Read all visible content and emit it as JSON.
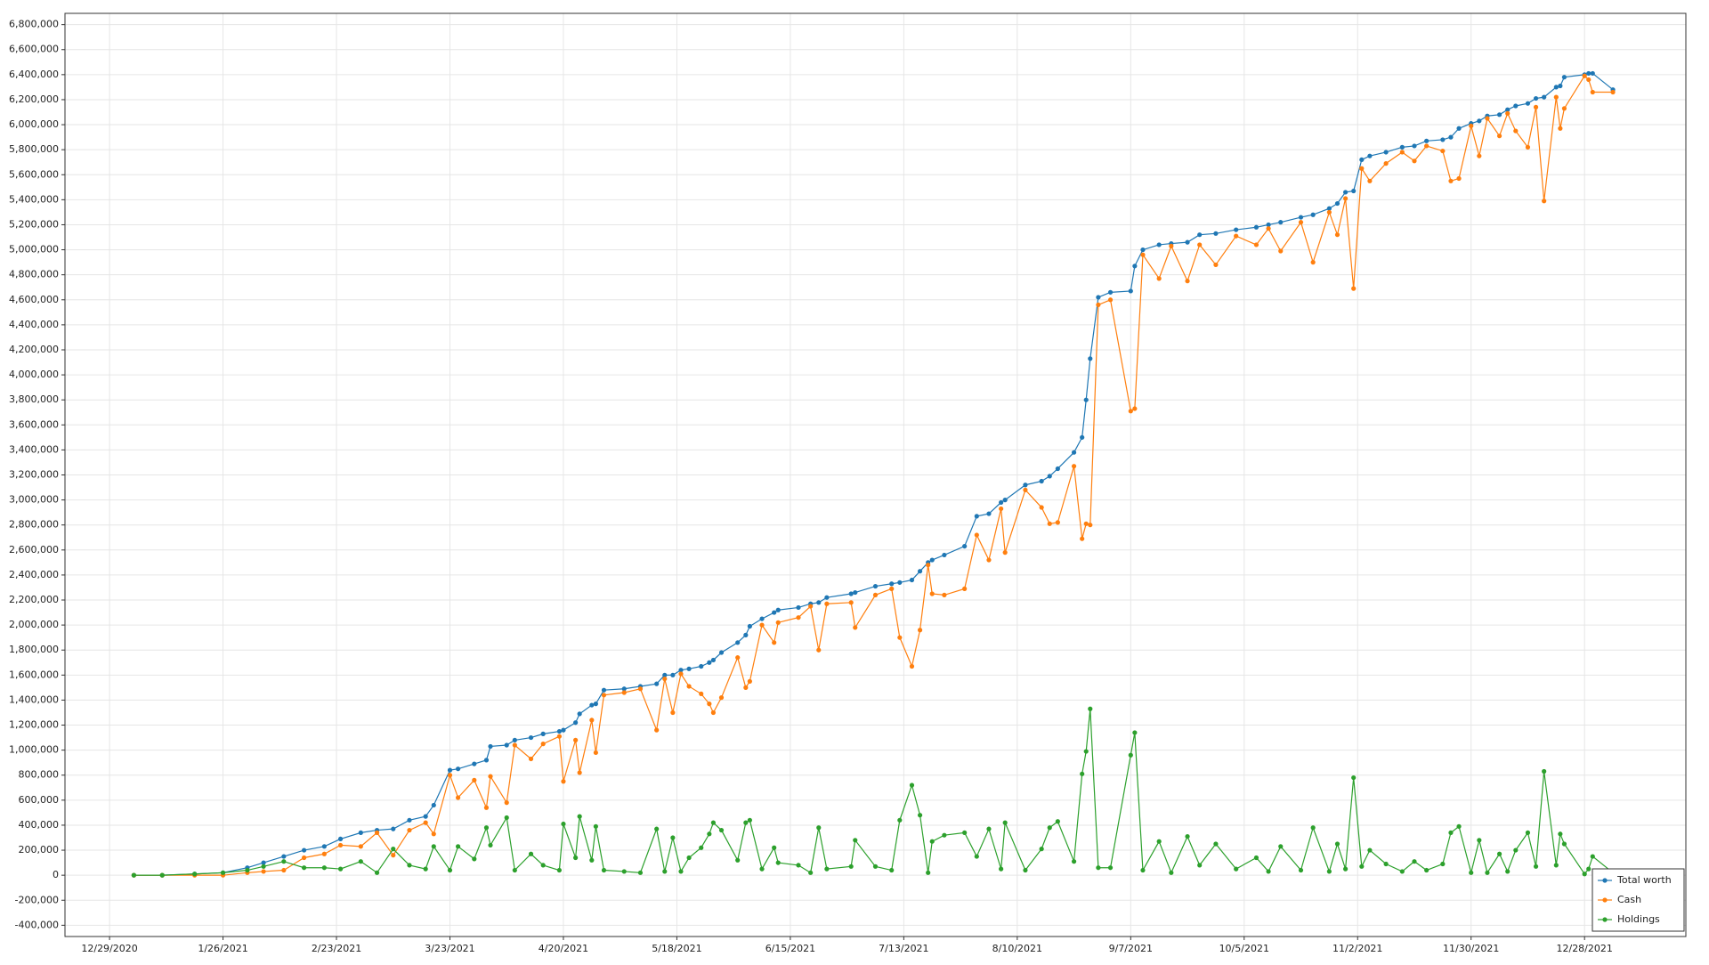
{
  "chart_data": {
    "type": "line",
    "x": [
      "1/4/2021",
      "1/11/2021",
      "1/19/2021",
      "1/26/2021",
      "2/1/2021",
      "2/5/2021",
      "2/10/2021",
      "2/15/2021",
      "2/20/2021",
      "2/24/2021",
      "3/1/2021",
      "3/5/2021",
      "3/9/2021",
      "3/13/2021",
      "3/17/2021",
      "3/19/2021",
      "3/23/2021",
      "3/25/2021",
      "3/29/2021",
      "4/1/2021",
      "4/2/2021",
      "4/6/2021",
      "4/8/2021",
      "4/12/2021",
      "4/15/2021",
      "4/19/2021",
      "4/20/2021",
      "4/23/2021",
      "4/24/2021",
      "4/27/2021",
      "4/28/2021",
      "4/30/2021",
      "5/5/2021",
      "5/9/2021",
      "5/13/2021",
      "5/15/2021",
      "5/17/2021",
      "5/19/2021",
      "5/21/2021",
      "5/24/2021",
      "5/26/2021",
      "5/27/2021",
      "5/29/2021",
      "6/2/2021",
      "6/4/2021",
      "6/5/2021",
      "6/8/2021",
      "6/11/2021",
      "6/12/2021",
      "6/17/2021",
      "6/20/2021",
      "6/22/2021",
      "6/24/2021",
      "6/30/2021",
      "7/1/2021",
      "7/6/2021",
      "7/10/2021",
      "7/12/2021",
      "7/15/2021",
      "7/17/2021",
      "7/19/2021",
      "7/20/2021",
      "7/23/2021",
      "7/28/2021",
      "7/31/2021",
      "8/3/2021",
      "8/6/2021",
      "8/7/2021",
      "8/12/2021",
      "8/16/2021",
      "8/18/2021",
      "8/20/2021",
      "8/24/2021",
      "8/26/2021",
      "8/27/2021",
      "8/28/2021",
      "8/30/2021",
      "9/2/2021",
      "9/7/2021",
      "9/8/2021",
      "9/10/2021",
      "9/14/2021",
      "9/17/2021",
      "9/21/2021",
      "9/24/2021",
      "9/28/2021",
      "10/3/2021",
      "10/8/2021",
      "10/11/2021",
      "10/14/2021",
      "10/19/2021",
      "10/22/2021",
      "10/26/2021",
      "10/28/2021",
      "10/30/2021",
      "11/1/2021",
      "11/3/2021",
      "11/5/2021",
      "11/9/2021",
      "11/13/2021",
      "11/16/2021",
      "11/19/2021",
      "11/23/2021",
      "11/25/2021",
      "11/27/2021",
      "11/30/2021",
      "12/2/2021",
      "12/4/2021",
      "12/7/2021",
      "12/9/2021",
      "12/11/2021",
      "12/14/2021",
      "12/16/2021",
      "12/18/2021",
      "12/21/2021",
      "12/22/2021",
      "12/23/2021",
      "12/28/2021",
      "12/29/2021",
      "12/30/2021",
      "1/4/2022"
    ],
    "series": [
      {
        "name": "Total worth",
        "color": "#1f77b4",
        "values": [
          0,
          0,
          10000,
          20000,
          60000,
          100000,
          150000,
          200000,
          230000,
          290000,
          340000,
          360000,
          370000,
          440000,
          470000,
          560000,
          840000,
          850000,
          890000,
          920000,
          1030000,
          1040000,
          1080000,
          1100000,
          1130000,
          1150000,
          1160000,
          1220000,
          1290000,
          1360000,
          1370000,
          1480000,
          1490000,
          1510000,
          1530000,
          1600000,
          1600000,
          1640000,
          1650000,
          1670000,
          1700000,
          1720000,
          1780000,
          1860000,
          1920000,
          1990000,
          2050000,
          2100000,
          2120000,
          2140000,
          2170000,
          2180000,
          2220000,
          2250000,
          2260000,
          2310000,
          2330000,
          2340000,
          2360000,
          2430000,
          2500000,
          2520000,
          2560000,
          2630000,
          2870000,
          2890000,
          2980000,
          3000000,
          3120000,
          3150000,
          3190000,
          3250000,
          3380000,
          3500000,
          3800000,
          4130000,
          4620000,
          4660000,
          4670000,
          4870000,
          5000000,
          5040000,
          5050000,
          5060000,
          5120000,
          5130000,
          5160000,
          5180000,
          5200000,
          5220000,
          5260000,
          5280000,
          5330000,
          5370000,
          5460000,
          5470000,
          5720000,
          5750000,
          5780000,
          5820000,
          5830000,
          5870000,
          5880000,
          5900000,
          5970000,
          6010000,
          6030000,
          6070000,
          6080000,
          6120000,
          6150000,
          6170000,
          6210000,
          6220000,
          6300000,
          6310000,
          6380000,
          6400000,
          6410000,
          6410000,
          6280000
        ]
      },
      {
        "name": "Cash",
        "color": "#ff7f0e",
        "values": [
          0,
          0,
          0,
          0,
          20000,
          30000,
          40000,
          140000,
          170000,
          240000,
          230000,
          340000,
          160000,
          360000,
          420000,
          330000,
          800000,
          620000,
          760000,
          540000,
          790000,
          580000,
          1040000,
          930000,
          1050000,
          1110000,
          750000,
          1080000,
          820000,
          1240000,
          980000,
          1440000,
          1460000,
          1490000,
          1160000,
          1570000,
          1300000,
          1610000,
          1510000,
          1450000,
          1370000,
          1300000,
          1420000,
          1740000,
          1500000,
          1550000,
          2000000,
          1860000,
          2020000,
          2060000,
          2150000,
          1800000,
          2170000,
          2180000,
          1980000,
          2240000,
          2290000,
          1900000,
          1670000,
          1960000,
          2480000,
          2250000,
          2240000,
          2290000,
          2720000,
          2520000,
          2930000,
          2580000,
          3080000,
          2940000,
          2810000,
          2820000,
          3270000,
          2690000,
          2810000,
          2800000,
          4560000,
          4600000,
          3710000,
          3730000,
          4960000,
          4770000,
          5030000,
          4750000,
          5040000,
          4880000,
          5110000,
          5040000,
          5170000,
          4990000,
          5220000,
          4900000,
          5300000,
          5120000,
          5410000,
          4690000,
          5650000,
          5550000,
          5690000,
          5780000,
          5710000,
          5830000,
          5790000,
          5550000,
          5570000,
          5990000,
          5750000,
          6050000,
          5910000,
          6090000,
          5950000,
          5820000,
          6140000,
          5390000,
          6220000,
          5970000,
          6130000,
          6390000,
          6360000,
          6260000,
          6260000
        ]
      },
      {
        "name": "Holdings",
        "color": "#2ca02c",
        "values": [
          0,
          0,
          10000,
          20000,
          40000,
          70000,
          110000,
          60000,
          60000,
          50000,
          110000,
          20000,
          210000,
          80000,
          50000,
          230000,
          40000,
          230000,
          130000,
          380000,
          240000,
          460000,
          40000,
          170000,
          80000,
          40000,
          410000,
          140000,
          470000,
          120000,
          390000,
          40000,
          30000,
          20000,
          370000,
          30000,
          300000,
          30000,
          140000,
          220000,
          330000,
          420000,
          360000,
          120000,
          420000,
          440000,
          50000,
          220000,
          100000,
          80000,
          20000,
          380000,
          50000,
          70000,
          280000,
          70000,
          40000,
          440000,
          720000,
          480000,
          20000,
          270000,
          320000,
          340000,
          150000,
          370000,
          50000,
          420000,
          40000,
          210000,
          380000,
          430000,
          110000,
          810000,
          990000,
          1330000,
          60000,
          60000,
          960000,
          1140000,
          40000,
          270000,
          20000,
          310000,
          80000,
          250000,
          50000,
          140000,
          30000,
          230000,
          40000,
          380000,
          30000,
          250000,
          50000,
          780000,
          70000,
          200000,
          90000,
          30000,
          110000,
          40000,
          90000,
          340000,
          390000,
          20000,
          280000,
          20000,
          170000,
          30000,
          200000,
          340000,
          70000,
          830000,
          80000,
          330000,
          250000,
          10000,
          50000,
          150000,
          20000
        ]
      }
    ],
    "xlim": [
      "12/18/2020",
      "1/22/2022"
    ],
    "xticks": [
      "12/29/2020",
      "1/26/2021",
      "2/23/2021",
      "3/23/2021",
      "4/20/2021",
      "5/18/2021",
      "6/15/2021",
      "7/13/2021",
      "8/10/2021",
      "9/7/2021",
      "10/5/2021",
      "11/2/2021",
      "11/30/2021",
      "12/28/2021"
    ],
    "ylim": [
      -490000,
      6890000
    ],
    "yticks": [
      {
        "value": -400000,
        "label": "-400,000"
      },
      {
        "value": -200000,
        "label": "-200,000"
      },
      0,
      {
        "value": 200000,
        "label": "200,000"
      },
      {
        "value": 400000,
        "label": "400,000"
      },
      {
        "value": 600000,
        "label": "600,000"
      },
      {
        "value": 800000,
        "label": "800,000"
      },
      {
        "value": 1000000,
        "label": "1,000,000"
      },
      {
        "value": 1200000,
        "label": "1,200,000"
      },
      {
        "value": 1400000,
        "label": "1,400,000"
      },
      {
        "value": 1600000,
        "label": "1,600,000"
      },
      {
        "value": 1800000,
        "label": "1,800,000"
      },
      {
        "value": 2000000,
        "label": "2,000,000"
      },
      {
        "value": 2200000,
        "label": "2,200,000"
      },
      {
        "value": 2400000,
        "label": "2,400,000"
      },
      {
        "value": 2600000,
        "label": "2,600,000"
      },
      {
        "value": 2800000,
        "label": "2,800,000"
      },
      {
        "value": 3000000,
        "label": "3,000,000"
      },
      {
        "value": 3200000,
        "label": "3,200,000"
      },
      {
        "value": 3400000,
        "label": "3,400,000"
      },
      {
        "value": 3600000,
        "label": "3,600,000"
      },
      {
        "value": 3800000,
        "label": "3,800,000"
      },
      {
        "value": 4000000,
        "label": "4,000,000"
      },
      {
        "value": 4200000,
        "label": "4,200,000"
      },
      {
        "value": 4400000,
        "label": "4,400,000"
      },
      {
        "value": 4600000,
        "label": "4,600,000"
      },
      {
        "value": 4800000,
        "label": "4,800,000"
      },
      {
        "value": 5000000,
        "label": "5,000,000"
      },
      {
        "value": 5200000,
        "label": "5,200,000"
      },
      {
        "value": 5400000,
        "label": "5,400,000"
      },
      {
        "value": 5600000,
        "label": "5,600,000"
      },
      {
        "value": 5800000,
        "label": "5,800,000"
      },
      {
        "value": 6000000,
        "label": "6,000,000"
      },
      {
        "value": 6200000,
        "label": "6,200,000"
      },
      {
        "value": 6400000,
        "label": "6,400,000"
      },
      {
        "value": 6600000,
        "label": "6,600,000"
      },
      {
        "value": 6800000,
        "label": "6,800,000"
      }
    ],
    "grid": true,
    "legend_position": "lower right"
  }
}
